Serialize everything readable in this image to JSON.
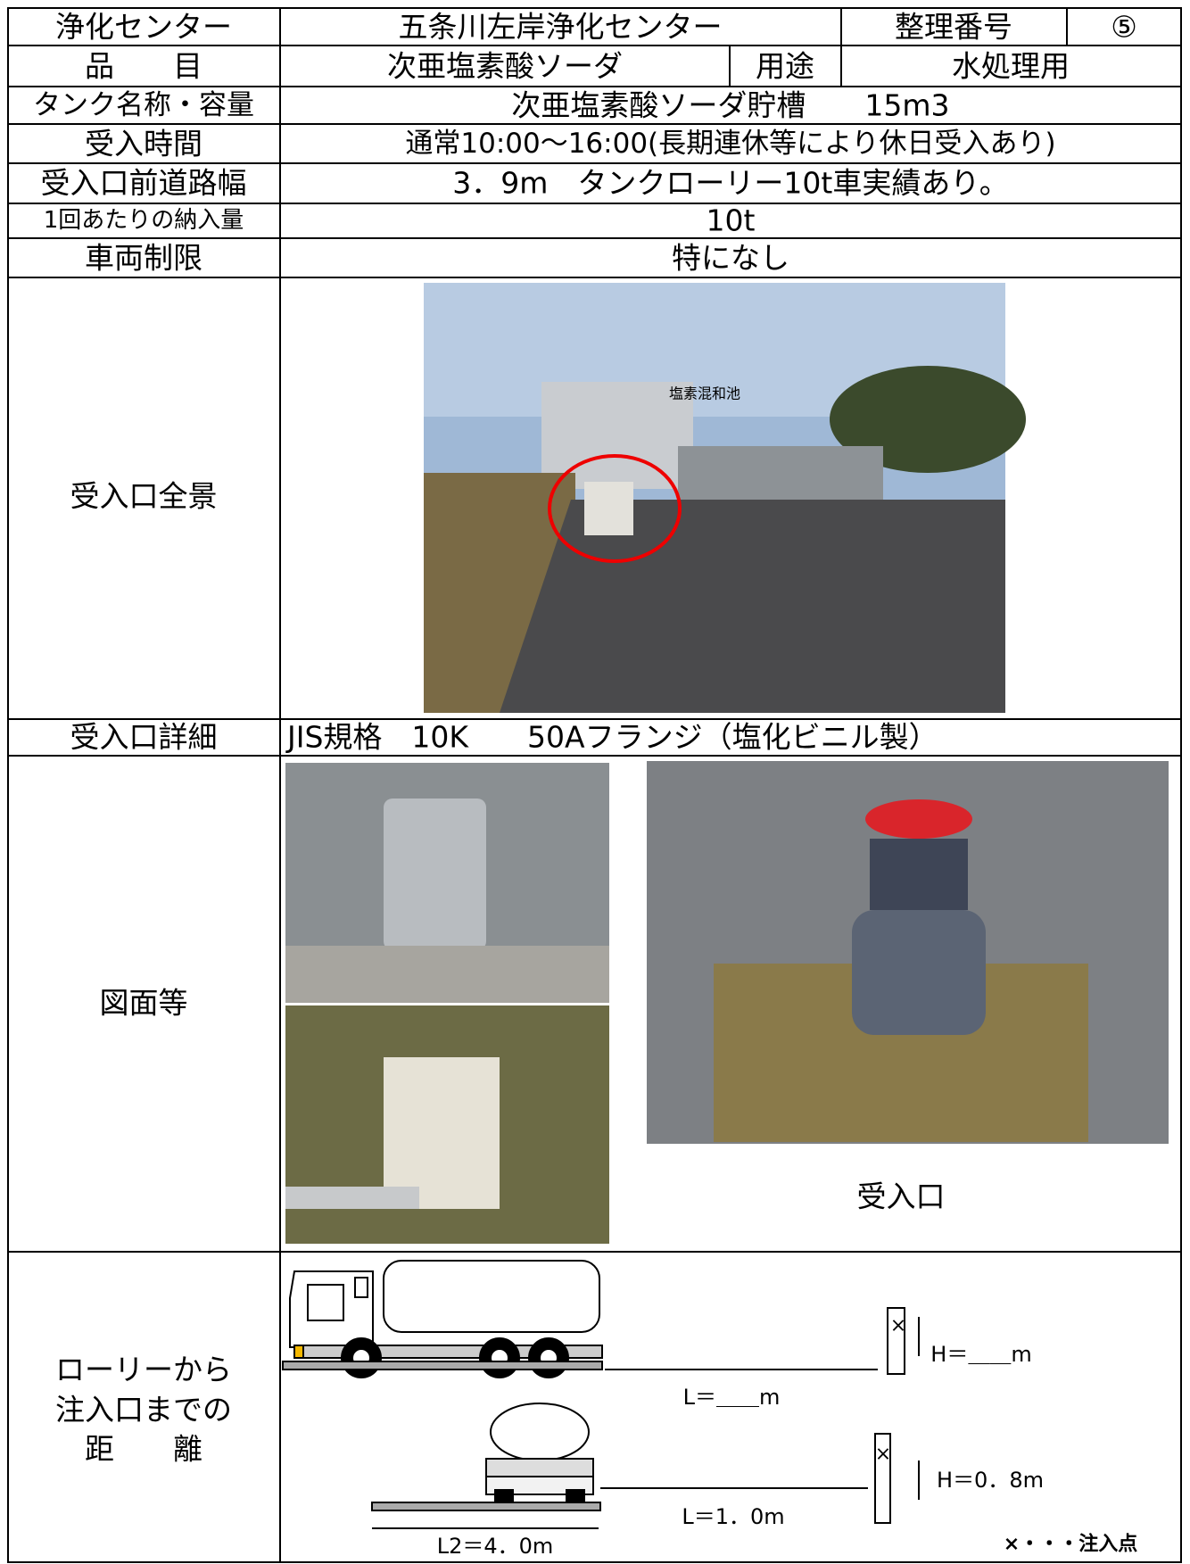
{
  "rows": [
    {
      "label": "浄化センター",
      "value": "五条川左岸浄化センター",
      "extra_label": "整理番号",
      "extra_value": "⑤"
    },
    {
      "label": "品　　目",
      "value": "次亜塩素酸ソーダ",
      "extra_label": "用途",
      "extra_value": "水処理用"
    },
    {
      "label": "タンク名称・容量",
      "value": "次亜塩素酸ソーダ貯槽　　15m3"
    },
    {
      "label": "受入時間",
      "value": "通常10:00～16:00(長期連休等により休日受入あり)"
    },
    {
      "label": "受入口前道路幅",
      "value": "3．9m　タンクローリー10t車実績あり。"
    },
    {
      "label": "1回あたりの納入量",
      "value": "10t"
    },
    {
      "label": "車両制限",
      "value": "特になし"
    },
    {
      "label": "受入口全景",
      "photo_caption": "塩素混和池"
    },
    {
      "label": "受入口詳細",
      "value": "JIS規格　10K　　50Aフランジ（塩化ビニル製）"
    },
    {
      "label": "図面等",
      "photo_caption": "受入口"
    },
    {
      "label_lines": [
        "ローリーから",
        "注入口までの",
        "距　　離"
      ],
      "diagram": {
        "h_top": "H＝＿＿m",
        "l_top": "L＝＿＿m",
        "h_bottom": "H＝0．8m",
        "l_bottom": "L＝1．0m",
        "l2": "L2＝4．0m",
        "legend": "×・・・注入点"
      }
    }
  ]
}
